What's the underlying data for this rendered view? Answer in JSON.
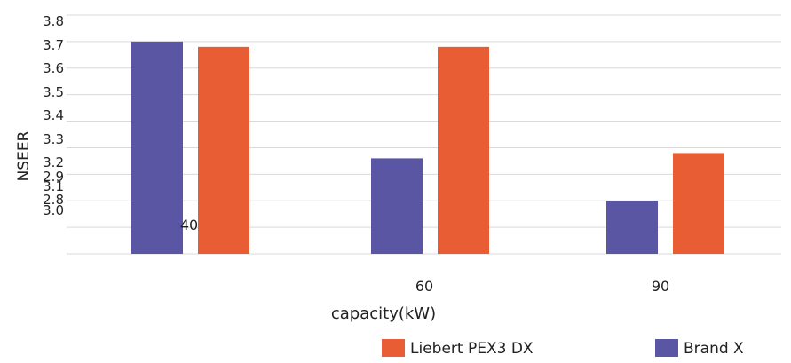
{
  "chart_data": {
    "type": "bar",
    "categories": [
      "40",
      "60",
      "90"
    ],
    "series": [
      {
        "name": "Brand X",
        "color": "#5a56a3",
        "values": [
          3.7,
          3.26,
          3.1
        ]
      },
      {
        "name": "Liebert PEX3 DX",
        "color": "#e85d33",
        "values": [
          3.68,
          3.68,
          3.28
        ]
      }
    ],
    "xlabel": "capacity(kW)",
    "ylabel": "NSEER",
    "ylim": [
      2.9,
      3.8
    ],
    "yticks": [
      "3.8",
      "3.7",
      "3.6",
      "3.5",
      "3.4",
      "3.3",
      "3.2",
      "3.1",
      "3.0",
      "2.9",
      "2.8"
    ],
    "gridline_values": [
      3.8,
      3.7,
      3.6,
      3.5,
      3.4,
      3.3,
      3.2,
      3.1,
      3.0,
      2.9
    ],
    "grid": true,
    "legend": {
      "position": "bottom-right",
      "entries": [
        {
          "label": "Liebert PEX3 DX",
          "color": "#e85d33"
        },
        {
          "label": "Brand X",
          "color": "#5a56a3"
        }
      ]
    }
  }
}
